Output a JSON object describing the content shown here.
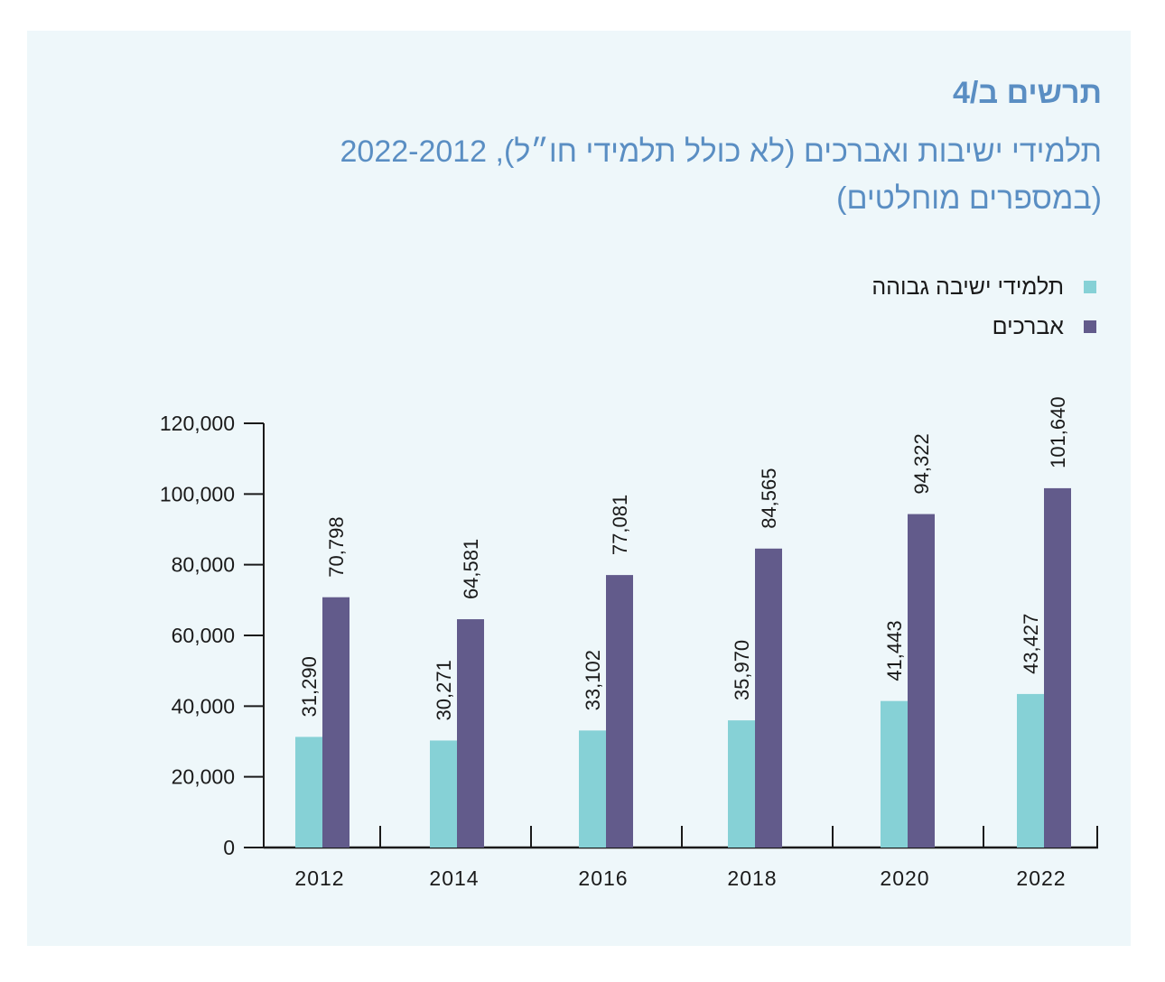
{
  "chart_data": {
    "type": "bar",
    "heading": "תרשים ב/4",
    "title": "תלמידי ישיבות ואברכים (לא כולל תלמידי חו״ל), 2022-2012",
    "subtitle": "(במספרים מוחלטים)",
    "categories": [
      "2012",
      "2014",
      "2016",
      "2018",
      "2020",
      "2022"
    ],
    "series": [
      {
        "name": "תלמידי ישיבה גבוהה",
        "color": "#86d1d6",
        "values": [
          31290,
          30271,
          33102,
          35970,
          41443,
          43427
        ],
        "labels": [
          "31,290",
          "30,271",
          "33,102",
          "35,970",
          "41,443",
          "43,427"
        ]
      },
      {
        "name": "אברכים",
        "color": "#625b8b",
        "values": [
          70798,
          64581,
          77081,
          84565,
          94322,
          101640
        ],
        "labels": [
          "70,798",
          "64,581",
          "77,081",
          "84,565",
          "94,322",
          "101,640"
        ]
      }
    ],
    "y_ticks": [
      0,
      20000,
      40000,
      60000,
      80000,
      100000,
      120000
    ],
    "y_tick_labels": [
      "0",
      "20,000",
      "40,000",
      "60,000",
      "80,000",
      "100,000",
      "120,000"
    ],
    "ylim": [
      0,
      120000
    ],
    "xlabel": "",
    "ylabel": "",
    "legend_position": "top-right"
  }
}
